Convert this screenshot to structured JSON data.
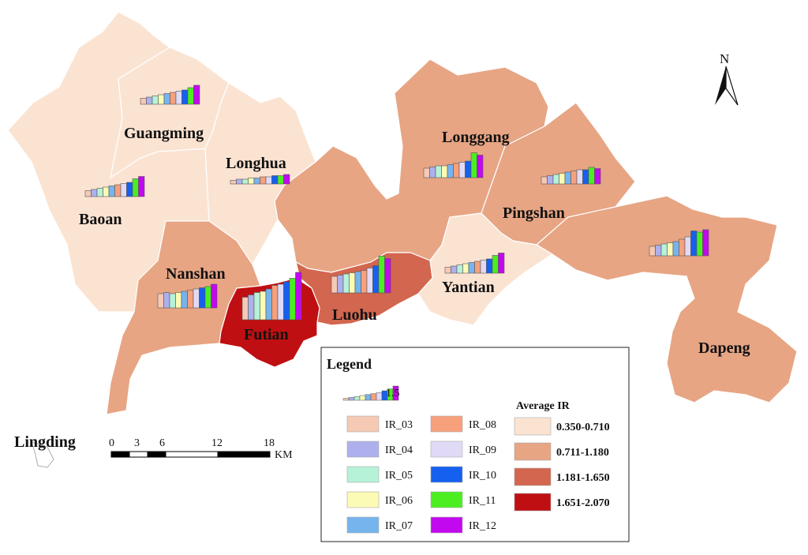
{
  "map": {
    "north_label": "N",
    "districts": [
      {
        "id": "baoan",
        "name": "Baoan",
        "class": 0
      },
      {
        "id": "guangming",
        "name": "Guangming",
        "class": 0
      },
      {
        "id": "longhua",
        "name": "Longhua",
        "class": 0
      },
      {
        "id": "nanshan",
        "name": "Nanshan",
        "class": 1
      },
      {
        "id": "futian",
        "name": "Futian",
        "class": 3
      },
      {
        "id": "luohu",
        "name": "Luohu",
        "class": 2
      },
      {
        "id": "yantian",
        "name": "Yantian",
        "class": 0
      },
      {
        "id": "longgang",
        "name": "Longgang",
        "class": 1
      },
      {
        "id": "pingshan",
        "name": "Pingshan",
        "class": 1
      },
      {
        "id": "dapeng",
        "name": "Dapeng",
        "class": 1
      }
    ],
    "island_label": "Lingding",
    "scale_bar": {
      "ticks": [
        "0",
        "3",
        "6",
        "12",
        "18"
      ],
      "unit": "KM"
    }
  },
  "bar_charts": [
    {
      "district": "guangming",
      "values": [
        0.25,
        0.3,
        0.35,
        0.4,
        0.45,
        0.5,
        0.55,
        0.6,
        0.7,
        0.8
      ]
    },
    {
      "district": "baoan",
      "values": [
        0.25,
        0.3,
        0.35,
        0.4,
        0.45,
        0.5,
        0.55,
        0.6,
        0.75,
        0.85
      ]
    },
    {
      "district": "longhua",
      "values": [
        0.15,
        0.2,
        0.2,
        0.25,
        0.25,
        0.3,
        0.3,
        0.35,
        0.35,
        0.4
      ]
    },
    {
      "district": "longgang",
      "values": [
        0.4,
        0.45,
        0.5,
        0.5,
        0.55,
        0.6,
        0.65,
        0.7,
        1.05,
        0.95
      ]
    },
    {
      "district": "pingshan",
      "values": [
        0.3,
        0.35,
        0.4,
        0.45,
        0.5,
        0.55,
        0.6,
        0.6,
        0.7,
        0.65
      ]
    },
    {
      "district": "dapeng",
      "values": [
        0.4,
        0.45,
        0.5,
        0.55,
        0.6,
        0.7,
        0.8,
        1.05,
        1.0,
        1.1
      ]
    },
    {
      "district": "yantian",
      "values": [
        0.25,
        0.3,
        0.35,
        0.4,
        0.45,
        0.5,
        0.55,
        0.6,
        0.75,
        0.85
      ]
    },
    {
      "district": "nanshan",
      "values": [
        0.6,
        0.65,
        0.6,
        0.65,
        0.7,
        0.75,
        0.8,
        0.85,
        0.9,
        1.0
      ]
    },
    {
      "district": "futian",
      "values": [
        0.95,
        1.05,
        1.15,
        1.2,
        1.3,
        1.45,
        1.5,
        1.6,
        1.75,
        2.0
      ]
    },
    {
      "district": "luohu",
      "values": [
        0.7,
        0.75,
        0.8,
        0.85,
        0.9,
        0.95,
        1.05,
        1.15,
        1.55,
        1.45
      ]
    }
  ],
  "legend": {
    "title": "Legend",
    "sample_value": "1.5",
    "series": [
      {
        "name": "IR_03",
        "color": "#f5c9b4"
      },
      {
        "name": "IR_04",
        "color": "#aeb0ee"
      },
      {
        "name": "IR_05",
        "color": "#b6f2d7"
      },
      {
        "name": "IR_06",
        "color": "#fbfbb6"
      },
      {
        "name": "IR_07",
        "color": "#76b4ee"
      },
      {
        "name": "IR_08",
        "color": "#f7a07c"
      },
      {
        "name": "IR_09",
        "color": "#e0daf6"
      },
      {
        "name": "IR_10",
        "color": "#1560ee"
      },
      {
        "name": "IR_11",
        "color": "#4cee22"
      },
      {
        "name": "IR_12",
        "color": "#c208ee"
      }
    ],
    "avg_title": "Average IR",
    "classes": [
      {
        "label": "0.350-0.710",
        "color": "#fbe3d2"
      },
      {
        "label": "0.711-1.180",
        "color": "#e7a584"
      },
      {
        "label": "1.181-1.650",
        "color": "#d3664e"
      },
      {
        "label": "1.651-2.070",
        "color": "#c00f12"
      }
    ]
  }
}
